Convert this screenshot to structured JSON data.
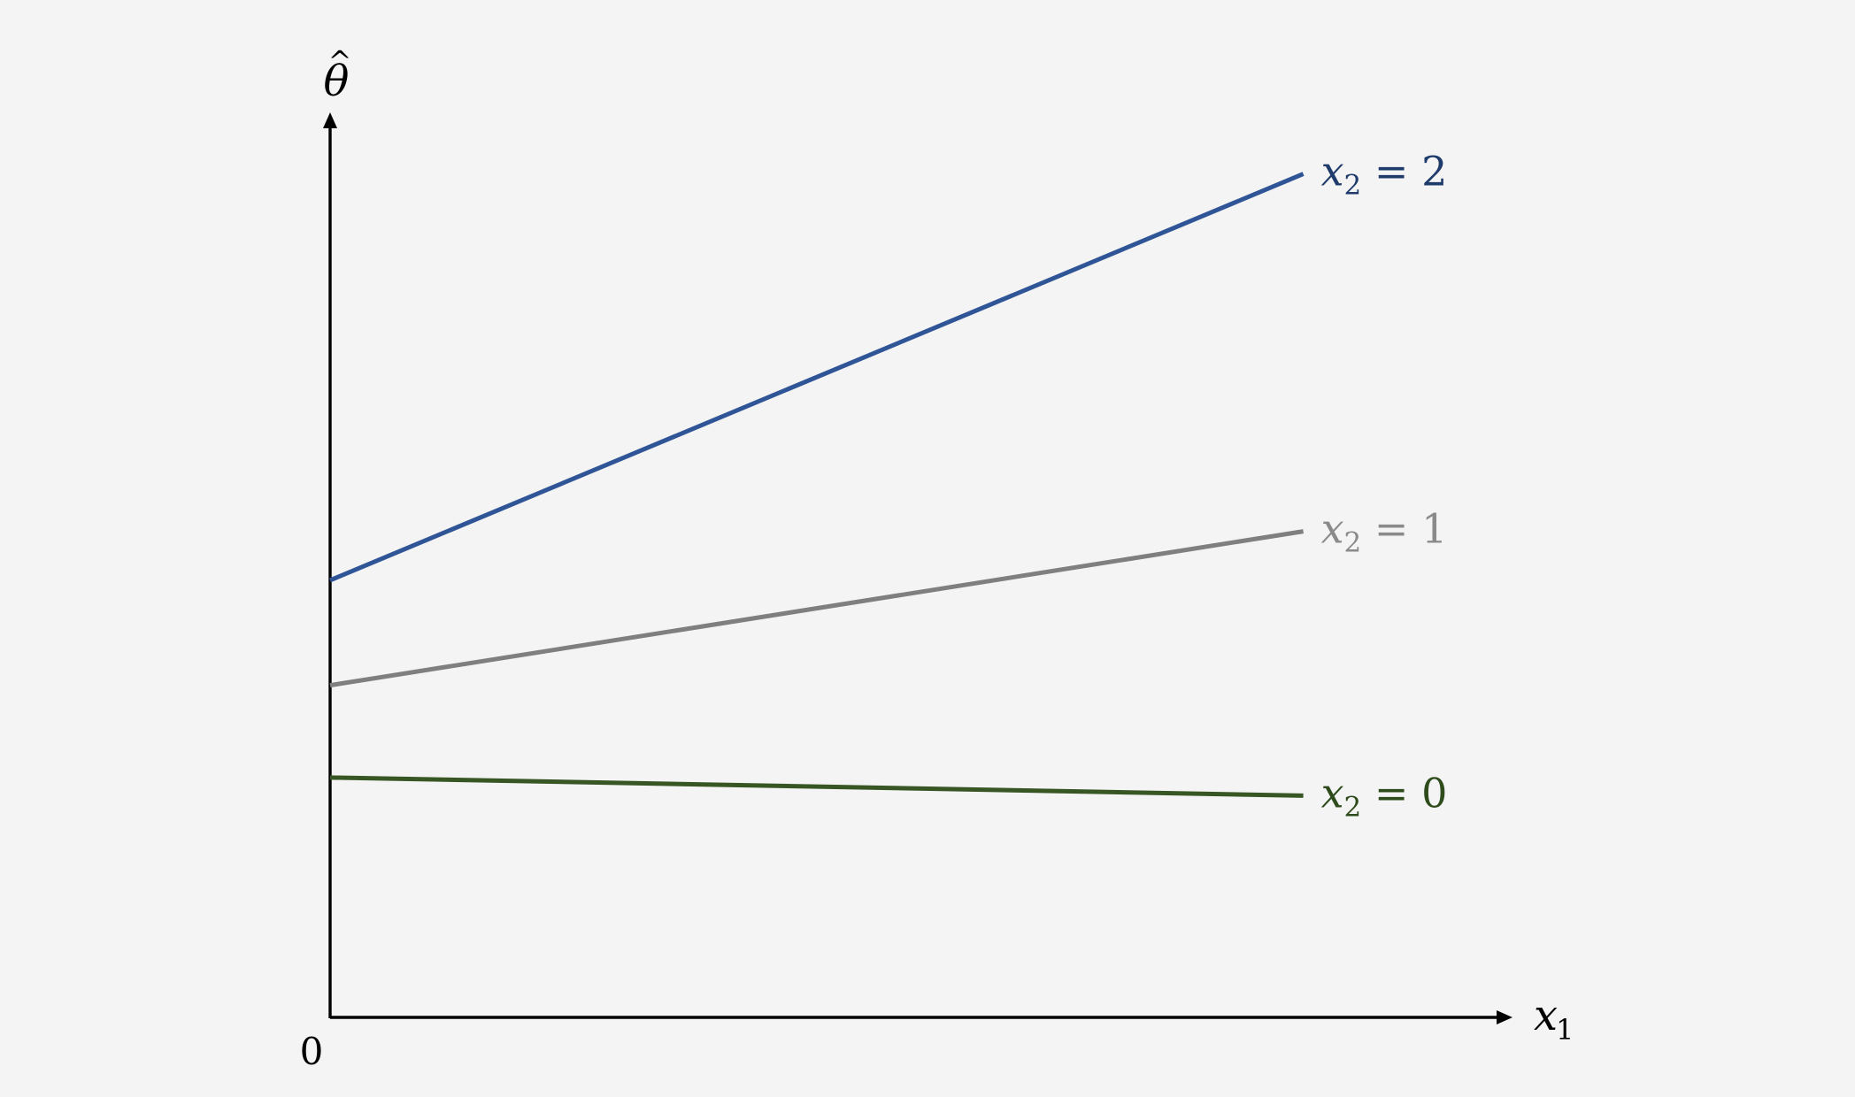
{
  "chart_data": {
    "type": "line",
    "title": "",
    "xlabel": {
      "base": "x",
      "sub": "1"
    },
    "ylabel": {
      "base": "θ",
      "accent": "^"
    },
    "origin_label": "0",
    "x": [
      0,
      1
    ],
    "xlim": [
      0,
      1.215
    ],
    "ylim": [
      0,
      1
    ],
    "grid": false,
    "legend": "inline-right",
    "series": [
      {
        "name": "x₂ = 2",
        "label": {
          "base": "x",
          "sub": "2",
          "op": "=",
          "value": "2"
        },
        "color": "#2f5597",
        "label_color": "#1f3b6b",
        "values": [
          0.483,
          0.932
        ]
      },
      {
        "name": "x₂ = 1",
        "label": {
          "base": "x",
          "sub": "2",
          "op": "=",
          "value": "1"
        },
        "color": "#7f7f7f",
        "label_color": "#8a8a8a",
        "values": [
          0.367,
          0.537
        ]
      },
      {
        "name": "x₂ = 0",
        "label": {
          "base": "x",
          "sub": "2",
          "op": "=",
          "value": "0"
        },
        "color": "#375623",
        "label_color": "#2e4b1c",
        "values": [
          0.265,
          0.245
        ]
      }
    ]
  }
}
